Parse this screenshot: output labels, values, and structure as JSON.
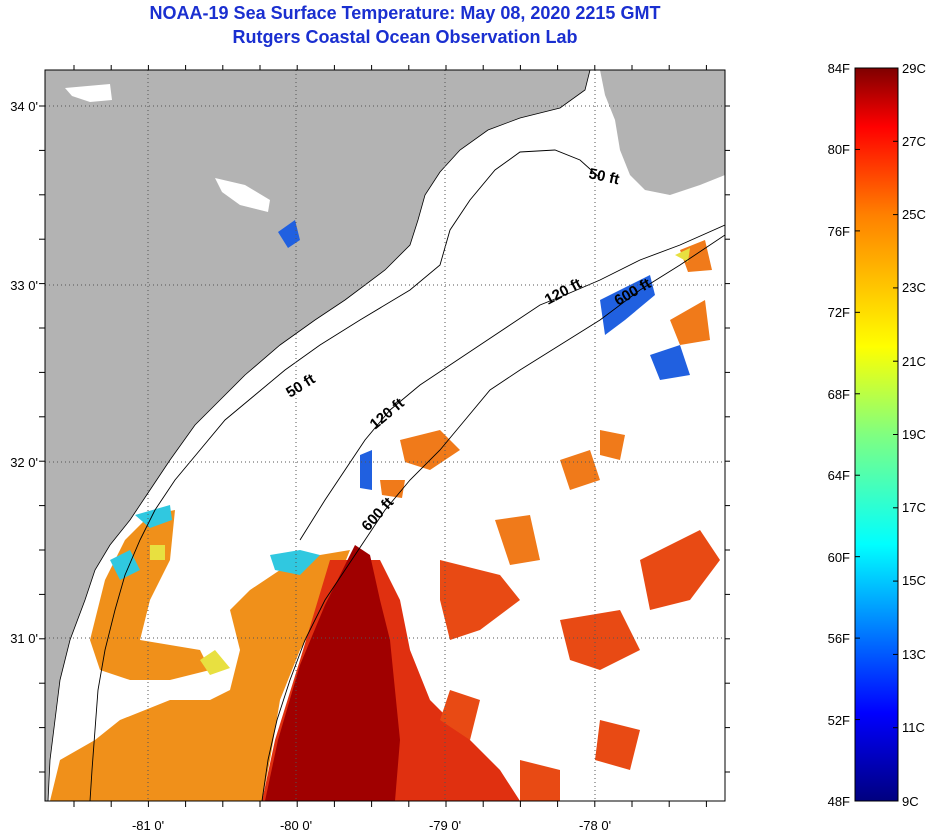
{
  "title": {
    "line1": "NOAA-19 Sea Surface Temperature:  May 08, 2020 2215 GMT",
    "line2": "Rutgers Coastal Ocean Observation Lab"
  },
  "map": {
    "lon_labels": [
      "-81 0'",
      "-80 0'",
      "-79 0'",
      "-78 0'"
    ],
    "lat_labels": [
      "34 0'",
      "33 0'",
      "32 0'",
      "31 0'"
    ],
    "isobath_labels": [
      "50 ft",
      "50 ft",
      "120 ft",
      "120 ft",
      "600 ft",
      "600 ft"
    ]
  },
  "colorbar": {
    "fahrenheit_labels": [
      "84F",
      "80F",
      "76F",
      "72F",
      "68F",
      "64F",
      "60F",
      "56F",
      "52F",
      "48F"
    ],
    "celsius_labels": [
      "29C",
      "27C",
      "25C",
      "23C",
      "21C",
      "19C",
      "17C",
      "15C",
      "13C",
      "11C",
      "9C"
    ],
    "range_c": [
      9,
      29
    ],
    "range_f": [
      48,
      84
    ]
  },
  "colors": {
    "title": "#1a2fd0",
    "land": "#b3b3b3",
    "ocean_missing": "#ffffff",
    "warm_core": "#a00000",
    "warm": "#e03010",
    "orange": "#f0901a"
  }
}
